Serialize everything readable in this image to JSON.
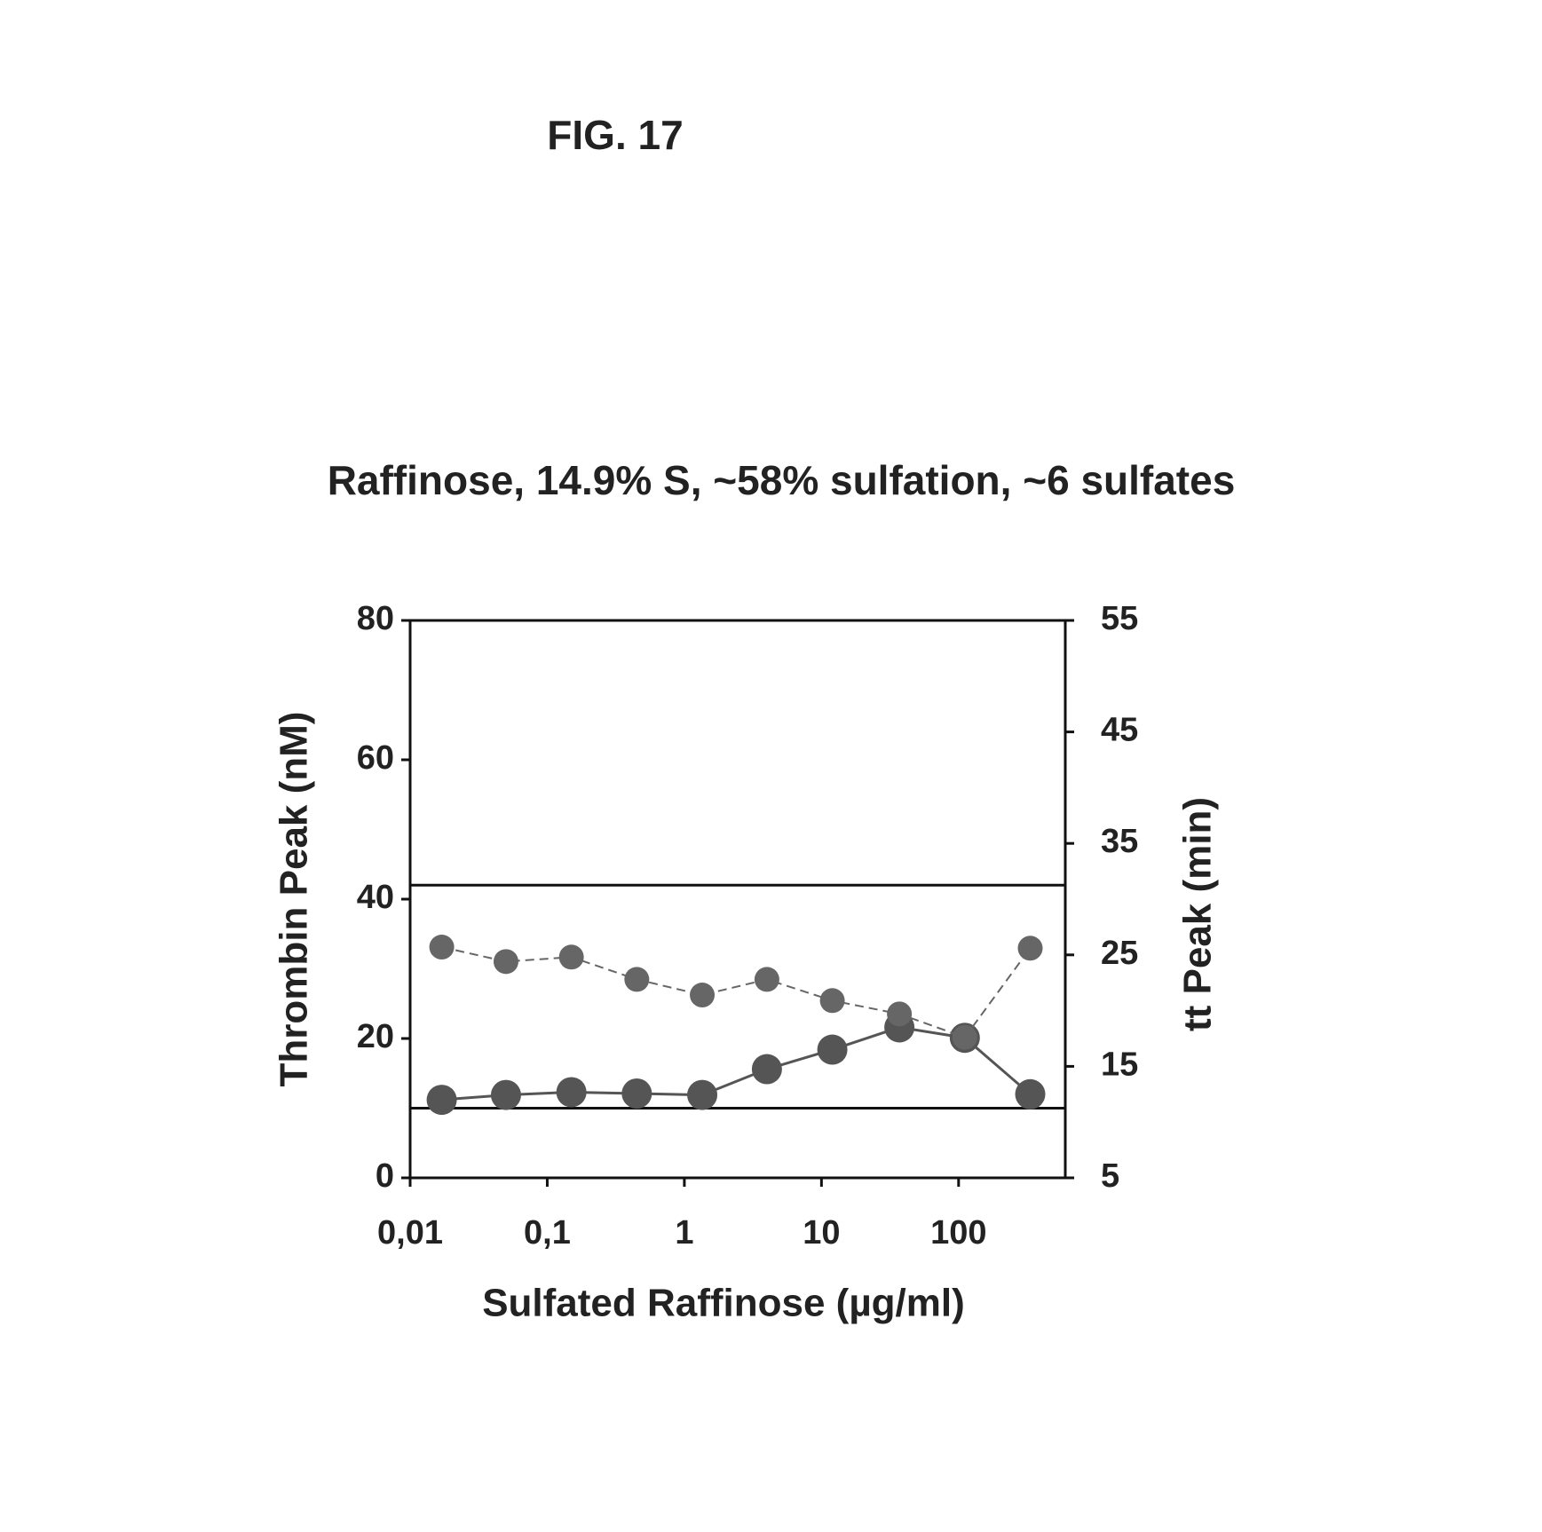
{
  "figure_label": "FIG. 17",
  "chart_data": {
    "type": "line",
    "title": "Raffinose, 14.9% S, ~58% sulfation, ~6 sulfates",
    "xlabel": "Sulfated Raffinose (µg/ml)",
    "ylabel": "Thrombin Peak (nM)",
    "y2label": "tt Peak (min)",
    "xscale": "log",
    "xlim": [
      0.01,
      600
    ],
    "xticks": [
      {
        "value": 0.01,
        "label": "0,01"
      },
      {
        "value": 0.1,
        "label": "0,1"
      },
      1,
      10,
      100
    ],
    "ylim": [
      0,
      80
    ],
    "yticks": [
      0,
      20,
      40,
      60,
      80
    ],
    "y2lim": [
      5,
      55
    ],
    "y2ticks": [
      5,
      15,
      25,
      35,
      45,
      55
    ],
    "hlines": [
      42,
      10
    ],
    "x": [
      0.017,
      0.05,
      0.15,
      0.45,
      1.35,
      4,
      12,
      37,
      111,
      333
    ],
    "series": [
      {
        "name": "Thrombin Peak",
        "color": "#555555",
        "dash": false,
        "axis": "y",
        "values": [
          11.2,
          11.9,
          12.3,
          12.1,
          11.9,
          15.6,
          18.4,
          21.6,
          20.1,
          12
        ]
      },
      {
        "name": "tt Peak",
        "color": "#666666",
        "dash": true,
        "axis": "y2",
        "values": [
          25.7,
          24.4,
          24.8,
          22.8,
          21.4,
          22.8,
          20.9,
          19.7,
          17.6,
          25.6
        ]
      }
    ]
  }
}
